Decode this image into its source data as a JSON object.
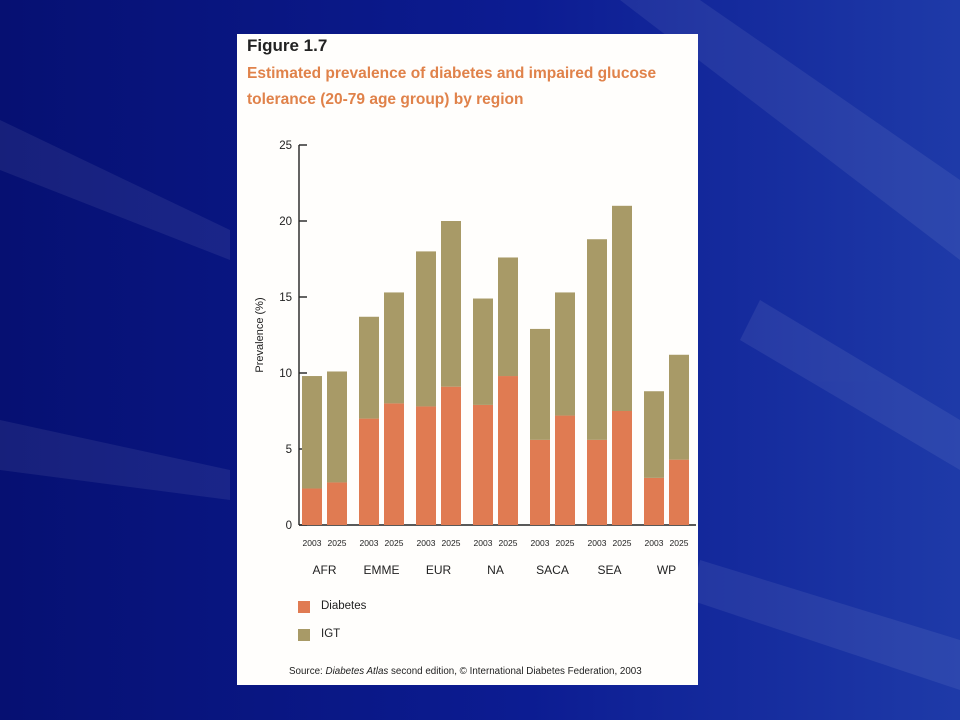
{
  "figure": {
    "label": "Figure 1.7",
    "title": "Estimated prevalence of diabetes and impaired glucose tolerance (20-79 age group) by region",
    "source_prefix": "Source: ",
    "source_italic": "Diabetes Atlas",
    "source_suffix": " second edition, © International Diabetes Federation, 2003"
  },
  "colors": {
    "background": "#0b1a8c",
    "diabetes": "#e07b52",
    "igt": "#a89a67",
    "title": "#e0824a"
  },
  "chart_data": {
    "type": "bar",
    "stacked": true,
    "ylabel": "Prevalence (%)",
    "ylim": [
      0,
      25
    ],
    "yticks": [
      0,
      5,
      10,
      15,
      20,
      25
    ],
    "groups": [
      "AFR",
      "EMME",
      "EUR",
      "NA",
      "SACA",
      "SEA",
      "WP"
    ],
    "years": [
      "2003",
      "2025"
    ],
    "categories": [
      "AFR 2003",
      "AFR 2025",
      "EMME 2003",
      "EMME 2025",
      "EUR 2003",
      "EUR 2025",
      "NA 2003",
      "NA 2025",
      "SACA 2003",
      "SACA 2025",
      "SEA 2003",
      "SEA 2025",
      "WP 2003",
      "WP 2025"
    ],
    "series": [
      {
        "name": "Diabetes",
        "values": [
          2.4,
          2.8,
          7.0,
          8.0,
          7.8,
          9.1,
          7.9,
          9.8,
          5.6,
          7.2,
          5.6,
          7.5,
          3.1,
          4.3
        ]
      },
      {
        "name": "IGT",
        "values": [
          7.4,
          7.3,
          6.7,
          7.3,
          10.2,
          10.9,
          7.0,
          7.8,
          7.3,
          8.1,
          13.2,
          13.5,
          5.7,
          6.9
        ]
      }
    ],
    "legend": "bottom-left"
  }
}
